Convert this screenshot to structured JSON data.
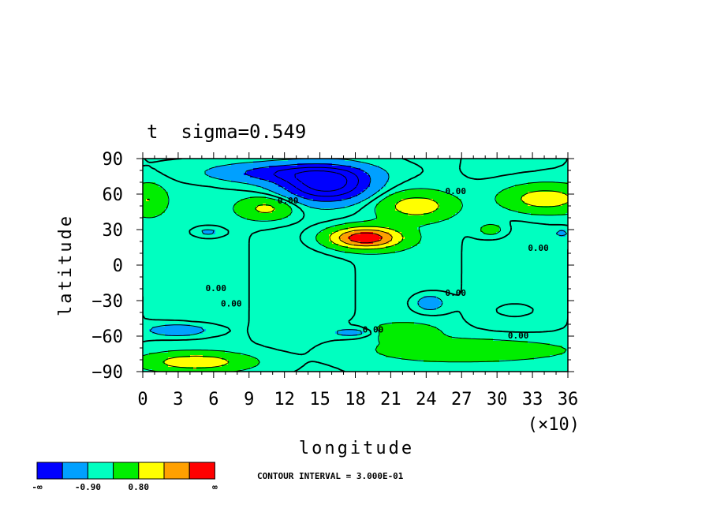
{
  "chart_data": {
    "type": "heatmap",
    "title": "t  sigma=0.549",
    "xlabel": "longitude",
    "ylabel": "latitude",
    "x_multiplier_label": "(×10)",
    "xlim": [
      0,
      36
    ],
    "ylim": [
      -90,
      90
    ],
    "x_ticks": [
      "0",
      "3",
      "6",
      "9",
      "12",
      "15",
      "18",
      "21",
      "24",
      "27",
      "30",
      "33",
      "36"
    ],
    "y_ticks": [
      "90",
      "60",
      "30",
      "0",
      "−30",
      "−60",
      "−90"
    ],
    "contour_interval_label": "CONTOUR INTERVAL = 3.000E-01",
    "contour_labels": [
      {
        "text": "0.00",
        "lon": 12.3,
        "lat": 54
      },
      {
        "text": "0.00",
        "lon": 26.5,
        "lat": 62
      },
      {
        "text": "0.00",
        "lon": 33.5,
        "lat": 14
      },
      {
        "text": "0.00",
        "lon": 6.2,
        "lat": -20
      },
      {
        "text": "0.00",
        "lon": 7.5,
        "lat": -33
      },
      {
        "text": "0.00",
        "lon": 26.5,
        "lat": -24
      },
      {
        "text": "0.00",
        "lon": 19.5,
        "lat": -55
      },
      {
        "text": "0.00",
        "lon": 31.8,
        "lat": -60
      }
    ],
    "colorbar": {
      "colors": [
        "#0000ff",
        "#00a0ff",
        "#00ffc0",
        "#00ee00",
        "#ffff00",
        "#ffa000",
        "#ff0000"
      ],
      "labels": [
        "-∞",
        "-0.90",
        "0.80",
        "∞"
      ]
    },
    "levels": [
      -0.9,
      -0.3,
      0.3,
      0.9,
      1.5,
      2.1
    ],
    "features": [
      {
        "lon": 15.6,
        "lat": 68,
        "amp": -2.4,
        "w": 3.6,
        "h": 14
      },
      {
        "lon": 12,
        "lat": 78,
        "amp": -1.2,
        "w": 6,
        "h": 8
      },
      {
        "lon": 18.8,
        "lat": 23,
        "amp": 2.6,
        "w": 3.0,
        "h": 9
      },
      {
        "lon": 23.2,
        "lat": 50,
        "amp": 1.2,
        "w": 3.2,
        "h": 12
      },
      {
        "lon": 10.5,
        "lat": 48,
        "amp": 1.1,
        "w": 2.4,
        "h": 10
      },
      {
        "lon": 34,
        "lat": 56,
        "amp": 1.3,
        "w": 3.6,
        "h": 12
      },
      {
        "lon": 0.4,
        "lat": 55,
        "amp": 0.9,
        "w": 1.6,
        "h": 14
      },
      {
        "lon": 4.5,
        "lat": -82,
        "amp": 1.3,
        "w": 4.5,
        "h": 8
      },
      {
        "lon": 28,
        "lat": -72,
        "amp": 0.8,
        "w": 8,
        "h": 10
      },
      {
        "lon": 22,
        "lat": -56,
        "amp": 0.7,
        "w": 3,
        "h": 7
      },
      {
        "lon": 3,
        "lat": -55,
        "amp": -0.8,
        "w": 2.5,
        "h": 5
      },
      {
        "lon": 18,
        "lat": -57,
        "amp": -0.6,
        "w": 2,
        "h": 4
      },
      {
        "lon": 24.3,
        "lat": -32,
        "amp": -0.7,
        "w": 1.3,
        "h": 7
      },
      {
        "lon": 29.5,
        "lat": 30,
        "amp": 0.6,
        "w": 1.2,
        "h": 6
      },
      {
        "lon": 31.5,
        "lat": -38,
        "amp": 0.4,
        "w": 1.2,
        "h": 4
      },
      {
        "lon": 5.5,
        "lat": 28,
        "amp": -0.5,
        "w": 1.2,
        "h": 4
      },
      {
        "lon": 35.5,
        "lat": 27,
        "amp": -0.4,
        "w": 0.8,
        "h": 4
      }
    ]
  }
}
